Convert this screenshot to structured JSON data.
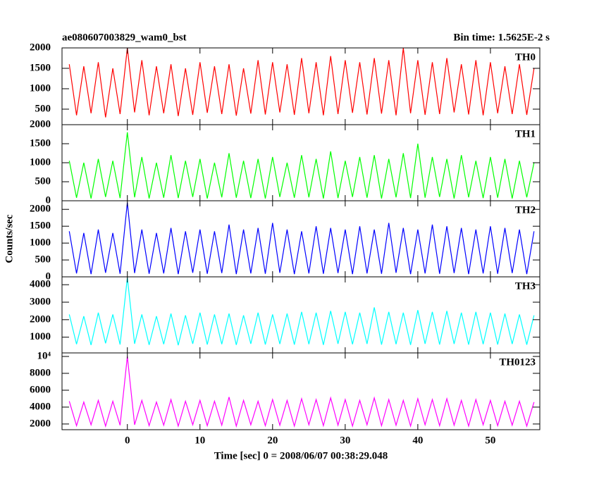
{
  "title": "ae080607003829_wam0_bst",
  "bin_time": "Bin time: 1.5625E-2 s",
  "y_label": "Counts/sec",
  "x_label": "Time [sec] 0 = 2008/06/07 00:38:29.048",
  "chart_data": [
    {
      "type": "line",
      "name": "TH0",
      "color": "#ff0000",
      "x": [
        -8,
        -7,
        -6,
        -5,
        -4,
        -3,
        -2,
        -1,
        0,
        1,
        2,
        3,
        4,
        5,
        6,
        7,
        8,
        9,
        10,
        11,
        12,
        13,
        14,
        15,
        16,
        17,
        18,
        19,
        20,
        21,
        22,
        23,
        24,
        25,
        26,
        27,
        28,
        29,
        30,
        31,
        32,
        33,
        34,
        35,
        36,
        37,
        38,
        39,
        40,
        41,
        42,
        43,
        44,
        45,
        46,
        47,
        48,
        49,
        50,
        51,
        52,
        53,
        54,
        55,
        56
      ],
      "values": [
        1600,
        350,
        1550,
        400,
        1650,
        300,
        1500,
        380,
        2000,
        420,
        1700,
        350,
        1550,
        400,
        1600,
        330,
        1500,
        360,
        1650,
        410,
        1550,
        380,
        1600,
        340,
        1500,
        390,
        1700,
        370,
        1650,
        420,
        1600,
        360,
        1750,
        400,
        1650,
        350,
        1800,
        380,
        1700,
        410,
        1650,
        370,
        1750,
        390,
        1700,
        350,
        2000,
        400,
        1700,
        360,
        1650,
        380,
        1750,
        420,
        1600,
        370,
        1700,
        350,
        1650,
        400,
        1550,
        380,
        1600,
        360,
        1500
      ],
      "xlim": [
        -9,
        56.8
      ],
      "xticks": [
        0,
        10,
        20,
        30,
        40,
        50
      ],
      "ylim": [
        120,
        2000
      ],
      "yticks": [
        500,
        1000,
        1500,
        2000
      ]
    },
    {
      "type": "line",
      "name": "TH1",
      "color": "#00ff00",
      "x": [
        -8,
        -7,
        -6,
        -5,
        -4,
        -3,
        -2,
        -1,
        0,
        1,
        2,
        3,
        4,
        5,
        6,
        7,
        8,
        9,
        10,
        11,
        12,
        13,
        14,
        15,
        16,
        17,
        18,
        19,
        20,
        21,
        22,
        23,
        24,
        25,
        26,
        27,
        28,
        29,
        30,
        31,
        32,
        33,
        34,
        35,
        36,
        37,
        38,
        39,
        40,
        41,
        42,
        43,
        44,
        45,
        46,
        47,
        48,
        49,
        50,
        51,
        52,
        53,
        54,
        55,
        56
      ],
      "values": [
        1050,
        80,
        1000,
        60,
        1100,
        100,
        1050,
        70,
        1800,
        90,
        1150,
        60,
        1000,
        80,
        1200,
        70,
        1050,
        100,
        1100,
        60,
        1000,
        90,
        1250,
        80,
        1050,
        70,
        1100,
        60,
        1150,
        100,
        1000,
        80,
        1200,
        90,
        1100,
        60,
        1300,
        70,
        1050,
        100,
        1150,
        80,
        1200,
        60,
        1100,
        90,
        1250,
        70,
        1500,
        80,
        1150,
        100,
        1100,
        60,
        1200,
        90,
        1050,
        70,
        1150,
        80,
        1100,
        60,
        1050,
        90,
        1000
      ],
      "xlim": [
        -9,
        56.8
      ],
      "xticks": [
        0,
        10,
        20,
        30,
        40,
        50
      ],
      "ylim": [
        0,
        2000
      ],
      "yticks": [
        0,
        500,
        1000,
        1500,
        2000
      ]
    },
    {
      "type": "line",
      "name": "TH2",
      "color": "#0000ff",
      "x": [
        -8,
        -7,
        -6,
        -5,
        -4,
        -3,
        -2,
        -1,
        0,
        1,
        2,
        3,
        4,
        5,
        6,
        7,
        8,
        9,
        10,
        11,
        12,
        13,
        14,
        15,
        16,
        17,
        18,
        19,
        20,
        21,
        22,
        23,
        24,
        25,
        26,
        27,
        28,
        29,
        30,
        31,
        32,
        33,
        34,
        35,
        36,
        37,
        38,
        39,
        40,
        41,
        42,
        43,
        44,
        45,
        46,
        47,
        48,
        49,
        50,
        51,
        52,
        53,
        54,
        55,
        56
      ],
      "values": [
        1350,
        100,
        1300,
        80,
        1400,
        120,
        1300,
        90,
        2200,
        110,
        1400,
        90,
        1300,
        100,
        1450,
        80,
        1350,
        120,
        1400,
        90,
        1350,
        110,
        1550,
        80,
        1400,
        100,
        1450,
        90,
        1600,
        120,
        1400,
        80,
        1350,
        100,
        1500,
        90,
        1450,
        110,
        1400,
        80,
        1500,
        100,
        1400,
        90,
        1600,
        120,
        1450,
        80,
        1400,
        100,
        1550,
        90,
        1500,
        110,
        1450,
        80,
        1400,
        100,
        1500,
        90,
        1450,
        110,
        1400,
        80,
        1350
      ],
      "xlim": [
        -9,
        56.8
      ],
      "xticks": [
        0,
        10,
        20,
        30,
        40,
        50
      ],
      "ylim": [
        0,
        2255
      ],
      "yticks": [
        0,
        500,
        1000,
        1500,
        2000
      ]
    },
    {
      "type": "line",
      "name": "TH3",
      "color": "#00ffff",
      "x": [
        -8,
        -7,
        -6,
        -5,
        -4,
        -3,
        -2,
        -1,
        0,
        1,
        2,
        3,
        4,
        5,
        6,
        7,
        8,
        9,
        10,
        11,
        12,
        13,
        14,
        15,
        16,
        17,
        18,
        19,
        20,
        21,
        22,
        23,
        24,
        25,
        26,
        27,
        28,
        29,
        30,
        31,
        32,
        33,
        34,
        35,
        36,
        37,
        38,
        39,
        40,
        41,
        42,
        43,
        44,
        45,
        46,
        47,
        48,
        49,
        50,
        51,
        52,
        53,
        54,
        55,
        56
      ],
      "values": [
        2300,
        600,
        2200,
        550,
        2400,
        650,
        2300,
        580,
        4400,
        620,
        2300,
        560,
        2200,
        600,
        2350,
        540,
        2250,
        620,
        2400,
        580,
        2300,
        600,
        2350,
        560,
        2250,
        620,
        2400,
        580,
        2300,
        610,
        2350,
        570,
        2450,
        600,
        2400,
        560,
        2500,
        620,
        2450,
        590,
        2400,
        610,
        2700,
        570,
        2450,
        600,
        2400,
        560,
        2550,
        620,
        2450,
        580,
        2500,
        610,
        2400,
        570,
        2450,
        600,
        2400,
        580,
        2350,
        610,
        2300,
        570,
        2250
      ],
      "xlim": [
        -9,
        56.8
      ],
      "xticks": [
        0,
        10,
        20,
        30,
        40,
        50
      ],
      "ylim": [
        100,
        4450
      ],
      "yticks": [
        1000,
        2000,
        3000,
        4000
      ]
    },
    {
      "type": "line",
      "name": "TH0123",
      "color": "#ff00ff",
      "x": [
        -8,
        -7,
        -6,
        -5,
        -4,
        -3,
        -2,
        -1,
        0,
        1,
        2,
        3,
        4,
        5,
        6,
        7,
        8,
        9,
        10,
        11,
        12,
        13,
        14,
        15,
        16,
        17,
        18,
        19,
        20,
        21,
        22,
        23,
        24,
        25,
        26,
        27,
        28,
        29,
        30,
        31,
        32,
        33,
        34,
        35,
        36,
        37,
        38,
        39,
        40,
        41,
        42,
        43,
        44,
        45,
        46,
        47,
        48,
        49,
        50,
        51,
        52,
        53,
        54,
        55,
        56
      ],
      "values": [
        4700,
        1800,
        4600,
        1900,
        4800,
        1750,
        4700,
        1850,
        10000,
        1900,
        4800,
        1800,
        4600,
        1850,
        4900,
        1750,
        4700,
        1900,
        4800,
        1800,
        4700,
        1850,
        5200,
        1750,
        4800,
        1900,
        4700,
        1800,
        4900,
        1850,
        4800,
        1750,
        5000,
        1900,
        4900,
        1800,
        5100,
        1850,
        4900,
        1750,
        4800,
        1900,
        5100,
        1800,
        4900,
        1850,
        4800,
        1750,
        5000,
        1900,
        4900,
        1800,
        5000,
        1850,
        4800,
        1750,
        4900,
        1900,
        4800,
        1800,
        4700,
        1850,
        4700,
        1750,
        4600
      ],
      "xlim": [
        -9,
        56.8
      ],
      "xticks": [
        0,
        10,
        20,
        30,
        40,
        50
      ],
      "ylim": [
        1325,
        10420
      ],
      "yticks": [
        2000,
        4000,
        6000,
        8000,
        {
          "value": 10000,
          "label": "10⁴"
        }
      ]
    }
  ]
}
